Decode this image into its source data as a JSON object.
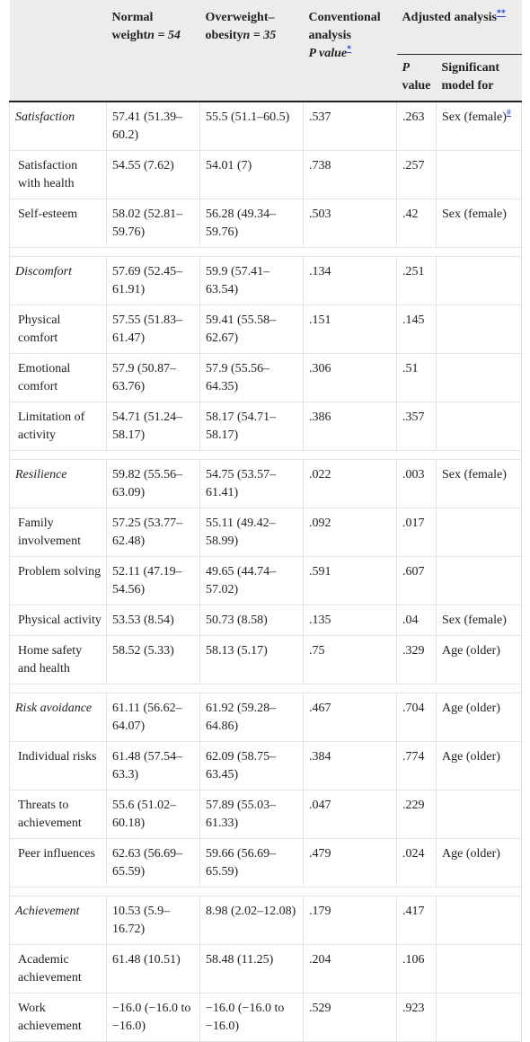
{
  "header": {
    "col_empty": "",
    "normal_line1": "Normal",
    "normal_line2": "weight",
    "normal_n": "n = 54",
    "over_line1": "Overweight–",
    "over_line2": "obesity",
    "over_n": "n = 35",
    "conventional": "Conventional analysis",
    "p_value_label": "P value",
    "p_value_fn": "*",
    "adjusted": "Adjusted analysis",
    "adjusted_fn": "**",
    "p_label": "P",
    "value_label": "value",
    "significant_label": "Significant model for"
  },
  "rows": [
    {
      "type": "section",
      "label": "Satisfaction",
      "normal": "57.41 (51.39–60.2)",
      "over": "55.5 (51.1–60.5)",
      "p_conv": ".537",
      "p_adj": ".263",
      "sig": "Sex (female)",
      "sig_fn": "#"
    },
    {
      "type": "sub",
      "label": "Satisfaction with health",
      "normal": "54.55 (7.62)",
      "over": "54.01 (7)",
      "p_conv": ".738",
      "p_adj": ".257",
      "sig": ""
    },
    {
      "type": "sub",
      "label": "Self-esteem",
      "normal": "58.02 (52.81–59.76)",
      "over": "56.28 (49.34–59.76)",
      "p_conv": ".503",
      "p_adj": ".42",
      "sig": "Sex (female)"
    },
    {
      "type": "spacer"
    },
    {
      "type": "section",
      "label": "Discomfort",
      "normal": "57.69 (52.45–61.91)",
      "over": "59.9 (57.41–63.54)",
      "p_conv": ".134",
      "p_adj": ".251",
      "sig": ""
    },
    {
      "type": "sub",
      "label": "Physical comfort",
      "normal": "57.55 (51.83–61.47)",
      "over": "59.41 (55.58–62.67)",
      "p_conv": ".151",
      "p_adj": ".145",
      "sig": ""
    },
    {
      "type": "sub",
      "label": "Emotional comfort",
      "normal": "57.9 (50.87–63.76)",
      "over": "57.9 (55.56–64.35)",
      "p_conv": ".306",
      "p_adj": ".51",
      "sig": ""
    },
    {
      "type": "sub",
      "label": "Limitation of activity",
      "normal": "54.71 (51.24–58.17)",
      "over": "58.17 (54.71–58.17)",
      "p_conv": ".386",
      "p_adj": ".357",
      "sig": ""
    },
    {
      "type": "spacer"
    },
    {
      "type": "section",
      "label": "Resilience",
      "normal": "59.82 (55.56–63.09)",
      "over": "54.75 (53.57–61.41)",
      "p_conv": ".022",
      "p_adj": ".003",
      "sig": "Sex (female)"
    },
    {
      "type": "sub",
      "label": "Family involvement",
      "normal": "57.25 (53.77–62.48)",
      "over": "55.11 (49.42–58.99)",
      "p_conv": ".092",
      "p_adj": ".017",
      "sig": ""
    },
    {
      "type": "sub",
      "label": "Problem solving",
      "normal": "52.11 (47.19–54.56)",
      "over": "49.65 (44.74–57.02)",
      "p_conv": ".591",
      "p_adj": ".607",
      "sig": ""
    },
    {
      "type": "sub",
      "label": "Physical activity",
      "normal": "53.53 (8.54)",
      "over": "50.73 (8.58)",
      "p_conv": ".135",
      "p_adj": ".04",
      "sig": "Sex (female)"
    },
    {
      "type": "sub",
      "label": "Home safety and health",
      "normal": "58.52 (5.33)",
      "over": "58.13 (5.17)",
      "p_conv": ".75",
      "p_adj": ".329",
      "sig": "Age (older)"
    },
    {
      "type": "spacer"
    },
    {
      "type": "section",
      "label": "Risk avoidance",
      "normal": "61.11 (56.62–64.07)",
      "over": "61.92 (59.28–64.86)",
      "p_conv": ".467",
      "p_adj": ".704",
      "sig": "Age (older)"
    },
    {
      "type": "sub",
      "label": "Individual risks",
      "normal": "61.48 (57.54–63.3)",
      "over": "62.09 (58.75–63.45)",
      "p_conv": ".384",
      "p_adj": ".774",
      "sig": "Age (older)"
    },
    {
      "type": "sub",
      "label": "Threats to achievement",
      "normal": "55.6 (51.02–60.18)",
      "over": "57.89 (55.03–61.33)",
      "p_conv": ".047",
      "p_adj": ".229",
      "sig": ""
    },
    {
      "type": "sub",
      "label": "Peer influences",
      "normal": "62.63 (56.69–65.59)",
      "over": "59.66 (56.69–65.59)",
      "p_conv": ".479",
      "p_adj": ".024",
      "sig": "Age (older)"
    },
    {
      "type": "spacer"
    },
    {
      "type": "section",
      "label": "Achievement",
      "normal": "10.53 (5.9–16.72)",
      "over": "8.98 (2.02–12.08)",
      "p_conv": ".179",
      "p_adj": ".417",
      "sig": ""
    },
    {
      "type": "sub",
      "label": "Academic achievement",
      "normal": "61.48 (10.51)",
      "over": "58.48 (11.25)",
      "p_conv": ".204",
      "p_adj": ".106",
      "sig": ""
    },
    {
      "type": "sub",
      "label": "Work achievement",
      "normal": "−16.0 (−16.0 to −16.0)",
      "over": "−16.0 (−16.0 to −16.0)",
      "p_conv": ".529",
      "p_adj": ".923",
      "sig": ""
    }
  ]
}
